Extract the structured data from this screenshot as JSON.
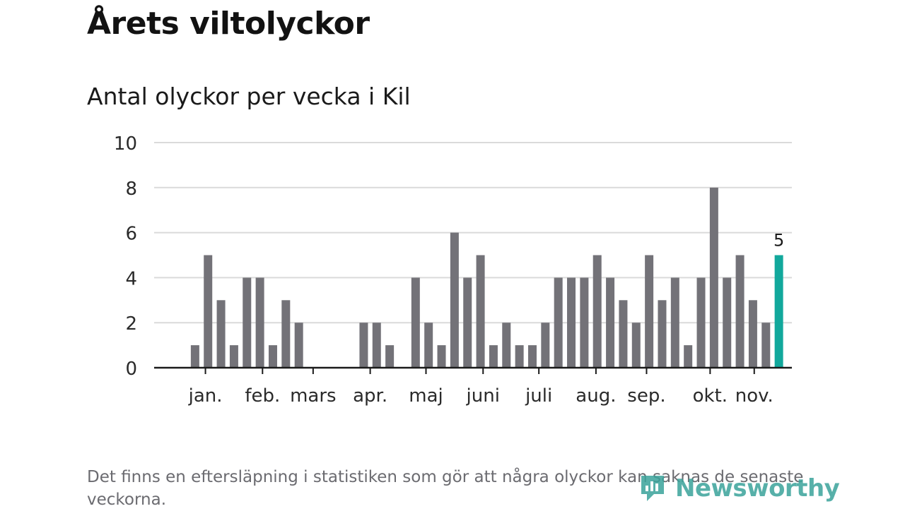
{
  "title": "Årets viltolyckor",
  "chart_data": {
    "type": "bar",
    "title": "Antal olyckor per vecka i Kil",
    "xlabel": "",
    "ylabel": "",
    "ylim": [
      0,
      10
    ],
    "yticks": [
      0,
      2,
      4,
      6,
      8,
      10
    ],
    "grid": true,
    "weeks": [
      1,
      2,
      3,
      4,
      5,
      6,
      7,
      8,
      9,
      10,
      11,
      12,
      13,
      14,
      15,
      16,
      17,
      18,
      19,
      20,
      21,
      22,
      23,
      24,
      25,
      26,
      27,
      28,
      29,
      30,
      31,
      32,
      33,
      34,
      35,
      36,
      37,
      38,
      39,
      40,
      41,
      42,
      43,
      44,
      45,
      46,
      47,
      48
    ],
    "values": [
      0,
      0,
      1,
      5,
      3,
      1,
      4,
      4,
      1,
      3,
      2,
      0,
      0,
      0,
      0,
      2,
      2,
      1,
      0,
      4,
      2,
      1,
      6,
      4,
      5,
      1,
      2,
      1,
      1,
      2,
      4,
      4,
      4,
      5,
      4,
      3,
      2,
      5,
      3,
      4,
      1,
      4,
      8,
      4,
      5,
      3,
      2,
      5
    ],
    "highlight_index": 47,
    "highlight_label": "5",
    "months": [
      {
        "label": "jan.",
        "tick_week": 3.8
      },
      {
        "label": "feb.",
        "tick_week": 8.2
      },
      {
        "label": "mars",
        "tick_week": 12.1
      },
      {
        "label": "apr.",
        "tick_week": 16.5
      },
      {
        "label": "maj",
        "tick_week": 20.8
      },
      {
        "label": "juni",
        "tick_week": 25.2
      },
      {
        "label": "juli",
        "tick_week": 29.5
      },
      {
        "label": "aug.",
        "tick_week": 33.9
      },
      {
        "label": "sep.",
        "tick_week": 37.8
      },
      {
        "label": "okt.",
        "tick_week": 42.7
      },
      {
        "label": "nov.",
        "tick_week": 46.1
      }
    ],
    "colors": {
      "bar": "#737278",
      "highlight": "#12a89c",
      "grid": "#dadada",
      "axis": "#1a1a1a"
    }
  },
  "footnote": "Det finns en eftersläpning i statistiken som gör att några olyckor kan saknas de senaste veckorna.",
  "brand": {
    "name": "Newsworthy",
    "icon": "newsworthy-logo-icon",
    "color": "#3aa39b"
  }
}
